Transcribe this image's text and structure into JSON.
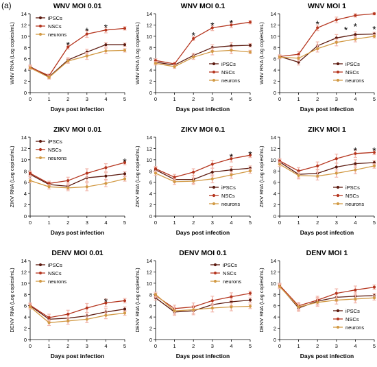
{
  "figure": {
    "panel_label": "(a)",
    "colors": {
      "iPSCs": "#5c1a0f",
      "NSCs": "#b5361f",
      "neurons": "#d29a45",
      "errorbar": "#f2b8ad"
    }
  },
  "chart_data": [
    {
      "type": "line",
      "title": "WNV MOI 0.01",
      "xlabel": "Days post infection",
      "ylabel": "WNV RNA (Log copies/mL)",
      "x": [
        0,
        1,
        2,
        3,
        4,
        5
      ],
      "xlim": [
        0,
        5
      ],
      "ylim": [
        0,
        14
      ],
      "xticks": [
        "0",
        "1",
        "2",
        "3",
        "4",
        "5"
      ],
      "yticks": [
        "0",
        "2",
        "4",
        "6",
        "8",
        "10",
        "12",
        "14"
      ],
      "legend_position": "top-left",
      "series": [
        {
          "name": "iPSCs",
          "x": [
            0,
            1,
            2,
            3,
            4,
            5
          ],
          "values": [
            4.6,
            2.8,
            5.8,
            7.2,
            8.5,
            8.5
          ],
          "err": [
            0.3,
            0.3,
            0.4,
            0.5,
            0.4,
            0.3
          ]
        },
        {
          "name": "NSCs",
          "x": [
            0,
            1,
            2,
            3,
            4,
            5
          ],
          "values": [
            4.5,
            3.0,
            8.1,
            10.4,
            11.1,
            11.4
          ],
          "err": [
            0.3,
            0.3,
            0.4,
            0.6,
            0.5,
            0.3
          ]
        },
        {
          "name": "neurons",
          "x": [
            0,
            1,
            2,
            3,
            4,
            5
          ],
          "values": [
            4.4,
            2.7,
            5.6,
            6.5,
            7.4,
            7.5
          ],
          "err": [
            0.3,
            0.3,
            0.4,
            0.6,
            0.5,
            0.3
          ]
        }
      ],
      "annotations": [
        {
          "text": "*",
          "x": 2,
          "y": 8.7
        },
        {
          "text": "*",
          "x": 3,
          "y": 11.2
        },
        {
          "text": "*",
          "x": 4,
          "y": 11.8
        }
      ]
    },
    {
      "type": "line",
      "title": "WNV MOI 0.1",
      "xlabel": "Days post infection",
      "ylabel": "WNV RNA (Log copies/mL)",
      "x": [
        0,
        1,
        2,
        3,
        4,
        5
      ],
      "xlim": [
        0,
        5
      ],
      "ylim": [
        0,
        14
      ],
      "xticks": [
        "0",
        "1",
        "2",
        "3",
        "4",
        "5"
      ],
      "yticks": [
        "0",
        "2",
        "4",
        "6",
        "8",
        "10",
        "12",
        "14"
      ],
      "legend_position": "bottom-right",
      "series": [
        {
          "name": "iPSCs",
          "x": [
            0,
            1,
            2,
            3,
            4,
            5
          ],
          "values": [
            5.4,
            4.9,
            6.6,
            8.0,
            8.3,
            8.4
          ],
          "err": [
            0.3,
            0.3,
            0.4,
            0.5,
            0.6,
            0.3
          ]
        },
        {
          "name": "NSCs",
          "x": [
            0,
            1,
            2,
            3,
            4,
            5
          ],
          "values": [
            5.7,
            5.1,
            9.6,
            11.5,
            12.0,
            12.5
          ],
          "err": [
            0.3,
            0.3,
            0.4,
            0.5,
            0.5,
            0.3
          ]
        },
        {
          "name": "neurons",
          "x": [
            0,
            1,
            2,
            3,
            4,
            5
          ],
          "values": [
            5.2,
            4.6,
            6.3,
            7.3,
            7.5,
            7.2
          ],
          "err": [
            0.3,
            0.3,
            0.4,
            0.6,
            0.6,
            0.3
          ]
        }
      ],
      "annotations": [
        {
          "text": "*",
          "x": 2,
          "y": 10.4
        },
        {
          "text": "*",
          "x": 3,
          "y": 12.2
        },
        {
          "text": "*",
          "x": 4,
          "y": 12.6
        }
      ]
    },
    {
      "type": "line",
      "title": "WNV MOI 1",
      "xlabel": "Days post infection",
      "ylabel": "WNV RNA (Log copies/mL)",
      "x": [
        0,
        1,
        2,
        3,
        4,
        5
      ],
      "xlim": [
        0,
        5
      ],
      "ylim": [
        0,
        14
      ],
      "xticks": [
        "0",
        "1",
        "2",
        "3",
        "4",
        "5"
      ],
      "yticks": [
        "0",
        "2",
        "4",
        "6",
        "8",
        "10",
        "12",
        "14"
      ],
      "legend_position": "bottom-right",
      "series": [
        {
          "name": "iPSCs",
          "x": [
            0,
            1,
            2,
            3,
            4,
            5
          ],
          "values": [
            6.4,
            5.4,
            8.3,
            9.7,
            10.3,
            10.4
          ],
          "err": [
            0.3,
            0.5,
            0.7,
            0.6,
            0.5,
            0.3
          ]
        },
        {
          "name": "NSCs",
          "x": [
            0,
            1,
            2,
            3,
            4,
            5
          ],
          "values": [
            6.4,
            6.8,
            11.5,
            12.9,
            13.7,
            14.0
          ],
          "err": [
            0.3,
            0.5,
            0.5,
            0.5,
            0.3,
            0.2
          ]
        },
        {
          "name": "neurons",
          "x": [
            0,
            1,
            2,
            3,
            4,
            5
          ],
          "values": [
            6.3,
            6.1,
            7.8,
            8.9,
            9.5,
            10.0
          ],
          "err": [
            0.3,
            0.5,
            0.6,
            0.6,
            0.5,
            0.3
          ]
        }
      ],
      "annotations": [
        {
          "text": "*",
          "x": 2,
          "y": 12.4
        },
        {
          "text": "*",
          "x": 3.5,
          "y": 11.4
        },
        {
          "text": "*",
          "x": 4,
          "y": 12.0
        },
        {
          "text": "*",
          "x": 5,
          "y": 11.5
        }
      ]
    },
    {
      "type": "line",
      "title": "ZIKV MOI 0.01",
      "xlabel": "Days post infection",
      "ylabel": "ZIKV RNA (Log copies/mL)",
      "x": [
        0,
        1,
        2,
        3,
        4,
        5
      ],
      "xlim": [
        0,
        5
      ],
      "ylim": [
        0,
        14
      ],
      "xticks": [
        "0",
        "1",
        "2",
        "3",
        "4",
        "5"
      ],
      "yticks": [
        "0",
        "2",
        "4",
        "6",
        "8",
        "10",
        "12",
        "14"
      ],
      "legend_position": "top-left",
      "series": [
        {
          "name": "iPSCs",
          "x": [
            0,
            1,
            2,
            3,
            4,
            5
          ],
          "values": [
            7.4,
            5.6,
            5.3,
            6.8,
            7.1,
            7.5
          ],
          "err": [
            0.4,
            0.4,
            0.6,
            0.7,
            0.6,
            0.4
          ]
        },
        {
          "name": "NSCs",
          "x": [
            0,
            1,
            2,
            3,
            4,
            5
          ],
          "values": [
            7.6,
            5.8,
            6.3,
            7.6,
            8.6,
            9.5
          ],
          "err": [
            0.4,
            0.4,
            0.6,
            0.8,
            0.7,
            0.4
          ]
        },
        {
          "name": "neurons",
          "x": [
            0,
            1,
            2,
            3,
            4,
            5
          ],
          "values": [
            6.3,
            5.2,
            5.0,
            5.2,
            5.8,
            6.6
          ],
          "err": [
            0.4,
            0.4,
            0.5,
            0.7,
            0.6,
            0.4
          ]
        }
      ],
      "annotations": [
        {
          "text": "*",
          "x": 5,
          "y": 9.9
        }
      ]
    },
    {
      "type": "line",
      "title": "ZIKV MOI 0.1",
      "xlabel": "Days post infection",
      "ylabel": "ZIKV RNA (Log copies/mL)",
      "x": [
        0,
        1,
        2,
        3,
        4,
        5
      ],
      "xlim": [
        0,
        5
      ],
      "ylim": [
        0,
        14
      ],
      "xticks": [
        "0",
        "1",
        "2",
        "3",
        "4",
        "5"
      ],
      "yticks": [
        "0",
        "2",
        "4",
        "6",
        "8",
        "10",
        "12",
        "14"
      ],
      "legend_position": "bottom-right",
      "series": [
        {
          "name": "iPSCs",
          "x": [
            0,
            1,
            2,
            3,
            4,
            5
          ],
          "values": [
            8.2,
            6.5,
            6.5,
            7.8,
            8.2,
            8.5
          ],
          "err": [
            0.4,
            0.5,
            0.7,
            0.7,
            0.6,
            0.4
          ]
        },
        {
          "name": "NSCs",
          "x": [
            0,
            1,
            2,
            3,
            4,
            5
          ],
          "values": [
            8.4,
            6.9,
            7.8,
            9.2,
            10.2,
            10.8
          ],
          "err": [
            0.4,
            0.5,
            0.6,
            0.7,
            0.6,
            0.4
          ]
        },
        {
          "name": "neurons",
          "x": [
            0,
            1,
            2,
            3,
            4,
            5
          ],
          "values": [
            7.6,
            6.1,
            6.2,
            6.6,
            7.3,
            8.0
          ],
          "err": [
            0.4,
            0.5,
            0.6,
            0.7,
            0.6,
            0.4
          ]
        }
      ],
      "annotations": [
        {
          "text": "*",
          "x": 4,
          "y": 10.8
        },
        {
          "text": "*",
          "x": 5,
          "y": 11.2
        }
      ]
    },
    {
      "type": "line",
      "title": "ZIKV MOI 1",
      "xlabel": "Days post infection",
      "ylabel": "ZIKV RNA (Log copies/mL)",
      "x": [
        0,
        1,
        2,
        3,
        4,
        5
      ],
      "xlim": [
        0,
        5
      ],
      "ylim": [
        0,
        14
      ],
      "xticks": [
        "0",
        "1",
        "2",
        "3",
        "4",
        "5"
      ],
      "yticks": [
        "0",
        "2",
        "4",
        "6",
        "8",
        "10",
        "12",
        "14"
      ],
      "legend_position": "bottom-right",
      "series": [
        {
          "name": "iPSCs",
          "x": [
            0,
            1,
            2,
            3,
            4,
            5
          ],
          "values": [
            9.6,
            7.4,
            7.6,
            8.7,
            9.3,
            9.5
          ],
          "err": [
            0.4,
            0.6,
            0.7,
            0.7,
            0.7,
            0.4
          ]
        },
        {
          "name": "NSCs",
          "x": [
            0,
            1,
            2,
            3,
            4,
            5
          ],
          "values": [
            9.8,
            8.0,
            8.9,
            10.2,
            11.1,
            11.3
          ],
          "err": [
            0.4,
            0.6,
            0.7,
            0.8,
            0.7,
            0.4
          ]
        },
        {
          "name": "neurons",
          "x": [
            0,
            1,
            2,
            3,
            4,
            5
          ],
          "values": [
            9.2,
            7.2,
            7.1,
            7.6,
            8.2,
            8.9
          ],
          "err": [
            0.4,
            0.6,
            0.7,
            0.7,
            0.7,
            0.4
          ]
        }
      ],
      "annotations": [
        {
          "text": "*",
          "x": 4,
          "y": 11.9
        },
        {
          "text": "*",
          "x": 5,
          "y": 11.9
        }
      ]
    },
    {
      "type": "line",
      "title": "DENV MOI 0.01",
      "xlabel": "Days post infection",
      "ylabel": "DENV RNA (Log copies/mL)",
      "x": [
        0,
        1,
        2,
        3,
        4,
        5
      ],
      "xlim": [
        0,
        5
      ],
      "ylim": [
        0,
        14
      ],
      "xticks": [
        "0",
        "1",
        "2",
        "3",
        "4",
        "5"
      ],
      "yticks": [
        "0",
        "2",
        "4",
        "6",
        "8",
        "10",
        "12",
        "14"
      ],
      "legend_position": "top-left",
      "series": [
        {
          "name": "iPSCs",
          "x": [
            0,
            1,
            2,
            3,
            4,
            5
          ],
          "values": [
            6.0,
            3.6,
            3.8,
            4.2,
            4.9,
            5.4
          ],
          "err": [
            0.4,
            0.5,
            0.6,
            0.6,
            0.6,
            0.4
          ]
        },
        {
          "name": "NSCs",
          "x": [
            0,
            1,
            2,
            3,
            4,
            5
          ],
          "values": [
            6.1,
            3.9,
            4.5,
            5.6,
            6.5,
            6.9
          ],
          "err": [
            0.4,
            0.6,
            0.7,
            0.8,
            0.7,
            0.4
          ]
        },
        {
          "name": "neurons",
          "x": [
            0,
            1,
            2,
            3,
            4,
            5
          ],
          "values": [
            5.8,
            3.0,
            3.3,
            3.6,
            4.3,
            4.7
          ],
          "err": [
            0.4,
            0.5,
            0.6,
            0.6,
            0.6,
            0.4
          ]
        }
      ],
      "annotations": [
        {
          "text": "*",
          "x": 4,
          "y": 7.0
        }
      ]
    },
    {
      "type": "line",
      "title": "DENV MOI 0.1",
      "xlabel": "Days post infection",
      "ylabel": "DENV RNA (Log copies/mL)",
      "x": [
        0,
        1,
        2,
        3,
        4,
        5
      ],
      "xlim": [
        0,
        5
      ],
      "ylim": [
        0,
        14
      ],
      "xticks": [
        "0",
        "1",
        "2",
        "3",
        "4",
        "5"
      ],
      "yticks": [
        "0",
        "2",
        "4",
        "6",
        "8",
        "10",
        "12",
        "14"
      ],
      "legend_position": "top-right",
      "series": [
        {
          "name": "iPSCs",
          "x": [
            0,
            1,
            2,
            3,
            4,
            5
          ],
          "values": [
            7.4,
            4.9,
            5.1,
            6.2,
            6.7,
            7.0
          ],
          "err": [
            0.4,
            0.6,
            0.7,
            0.7,
            0.7,
            0.4
          ]
        },
        {
          "name": "NSCs",
          "x": [
            0,
            1,
            2,
            3,
            4,
            5
          ],
          "values": [
            7.8,
            5.5,
            5.8,
            6.9,
            7.6,
            8.2
          ],
          "err": [
            0.4,
            0.6,
            0.7,
            0.8,
            0.7,
            0.4
          ]
        },
        {
          "name": "neurons",
          "x": [
            0,
            1,
            2,
            3,
            4,
            5
          ],
          "values": [
            8.0,
            5.1,
            5.3,
            5.6,
            5.8,
            5.9
          ],
          "err": [
            0.4,
            0.6,
            0.7,
            0.7,
            0.7,
            0.4
          ]
        }
      ],
      "annotations": []
    },
    {
      "type": "line",
      "title": "DENV MOI 1",
      "xlabel": "Days post infection",
      "ylabel": "DENV RNA (Log copies/mL)",
      "x": [
        0,
        1,
        2,
        3,
        4,
        5
      ],
      "xlim": [
        0,
        5
      ],
      "ylim": [
        0,
        14
      ],
      "xticks": [
        "0",
        "1",
        "2",
        "3",
        "4",
        "5"
      ],
      "yticks": [
        "0",
        "2",
        "4",
        "6",
        "8",
        "10",
        "12",
        "14"
      ],
      "legend_position": "bottom-right",
      "series": [
        {
          "name": "iPSCs",
          "x": [
            0,
            1,
            2,
            3,
            4,
            5
          ],
          "values": [
            9.5,
            5.6,
            6.8,
            7.5,
            7.7,
            7.8
          ],
          "err": [
            0.4,
            0.6,
            0.7,
            0.7,
            0.7,
            0.4
          ]
        },
        {
          "name": "NSCs",
          "x": [
            0,
            1,
            2,
            3,
            4,
            5
          ],
          "values": [
            9.6,
            6.0,
            7.0,
            8.2,
            8.8,
            9.3
          ],
          "err": [
            0.4,
            0.6,
            0.7,
            0.8,
            0.7,
            0.4
          ]
        },
        {
          "name": "neurons",
          "x": [
            0,
            1,
            2,
            3,
            4,
            5
          ],
          "values": [
            9.4,
            5.8,
            6.6,
            7.0,
            7.2,
            7.4
          ],
          "err": [
            0.4,
            0.6,
            0.7,
            0.7,
            0.7,
            0.4
          ]
        }
      ],
      "annotations": []
    }
  ]
}
